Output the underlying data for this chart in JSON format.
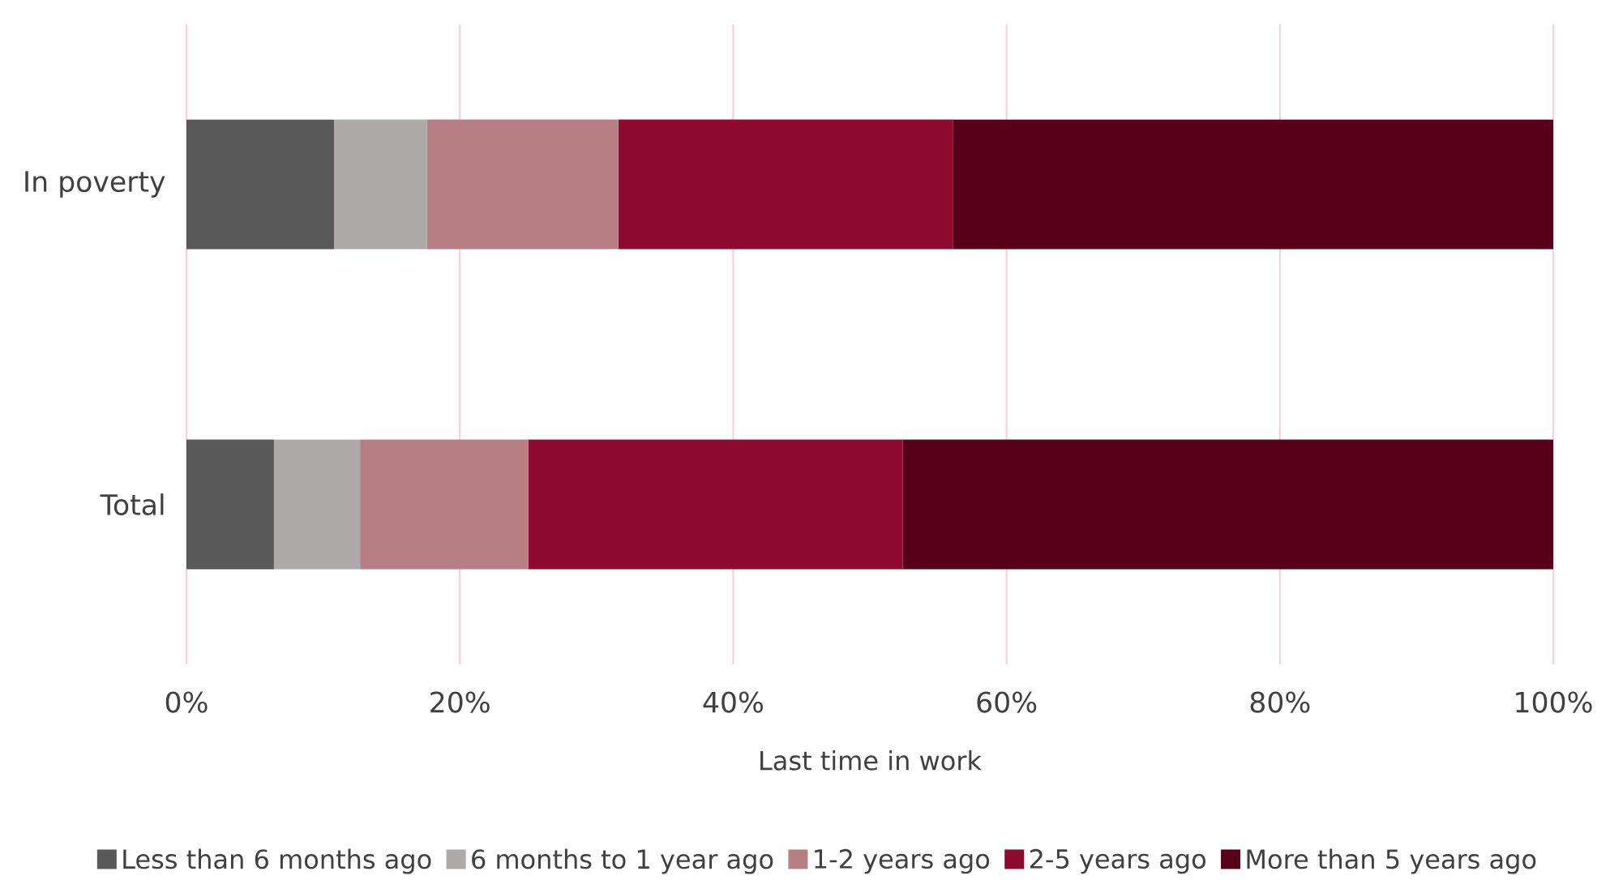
{
  "chart_data": {
    "type": "bar",
    "orientation": "horizontal",
    "stacked": true,
    "xlabel": "Last time in work",
    "categories": [
      "In poverty",
      "Total"
    ],
    "series": [
      {
        "name": "Less than 6 months ago",
        "color": "#595959",
        "values": [
          10.8,
          6.4
        ]
      },
      {
        "name": "6 months to 1 year ago",
        "color": "#aeaaaa",
        "values": [
          6.8,
          6.3
        ]
      },
      {
        "name": "1-2 years ago",
        "color": "#b77f84",
        "values": [
          14.0,
          12.3
        ]
      },
      {
        "name": "2-5 years ago",
        "color": "#8e0a2e",
        "values": [
          24.5,
          27.4
        ]
      },
      {
        "name": "More than 5 years ago",
        "color": "#58001a",
        "values": [
          43.9,
          47.6
        ]
      }
    ],
    "xlim": [
      0,
      100
    ],
    "xticks": [
      {
        "value": 0,
        "label": "0%"
      },
      {
        "value": 20,
        "label": "20%"
      },
      {
        "value": 40,
        "label": "40%"
      },
      {
        "value": 60,
        "label": "60%"
      },
      {
        "value": 80,
        "label": "80%"
      },
      {
        "value": 100,
        "label": "100%"
      }
    ],
    "grid": "x",
    "legend": "bottom"
  }
}
